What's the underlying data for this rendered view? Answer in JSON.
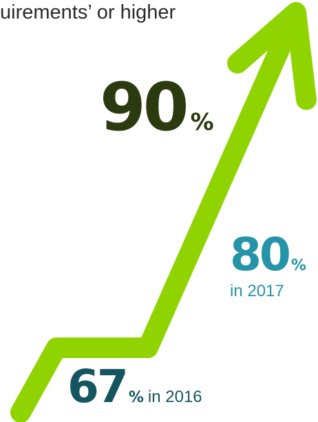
{
  "header": {
    "text": "uirements’ or higher"
  },
  "stats": {
    "top": {
      "value": "90",
      "unit": "%"
    },
    "middle": {
      "value": "80",
      "unit": "%",
      "year": "in 2017"
    },
    "bottom": {
      "value": "67",
      "unit": "%",
      "year": "in 2016"
    }
  },
  "colors": {
    "arrow": "#8fd400",
    "top_value": "#2c3a10",
    "middle_value": "#2593a8",
    "bottom_value": "#145560",
    "text": "#2a2a2a"
  },
  "icons": {
    "arrow": "trend-up-arrow-icon"
  }
}
